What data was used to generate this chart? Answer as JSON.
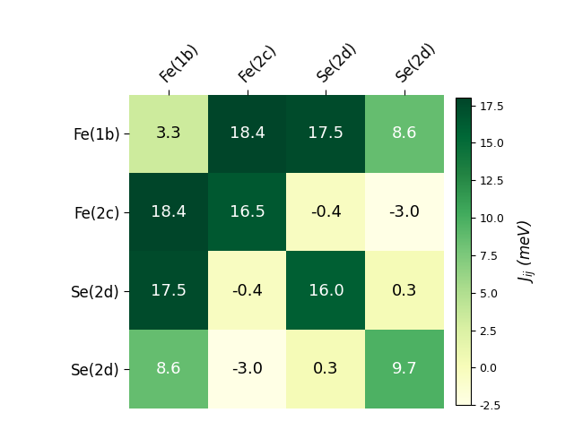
{
  "matrix": [
    [
      3.3,
      18.4,
      17.5,
      8.6
    ],
    [
      18.4,
      16.5,
      -0.4,
      -3.0
    ],
    [
      17.5,
      -0.4,
      16.0,
      0.3
    ],
    [
      8.6,
      -3.0,
      0.3,
      9.7
    ]
  ],
  "row_labels": [
    "Fe(1b)",
    "Fe(2c)",
    "Se(2d)",
    "Se(2d)"
  ],
  "col_labels": [
    "Fe(1b)",
    "Fe(2c)",
    "Se(2d)",
    "Se(2d)"
  ],
  "colorbar_label": "$J_{ij}$ (meV)",
  "vmin": -2.5,
  "vmax": 18.0,
  "cmap": "YlGn",
  "text_color_threshold": 8.0,
  "fontsize_cells": 13,
  "fontsize_labels": 12,
  "fontsize_colorbar": 12,
  "background_color": "#ffffff",
  "cbar_ticks": [
    -2.5,
    0.0,
    2.5,
    5.0,
    7.5,
    10.0,
    12.5,
    15.0,
    17.5
  ]
}
